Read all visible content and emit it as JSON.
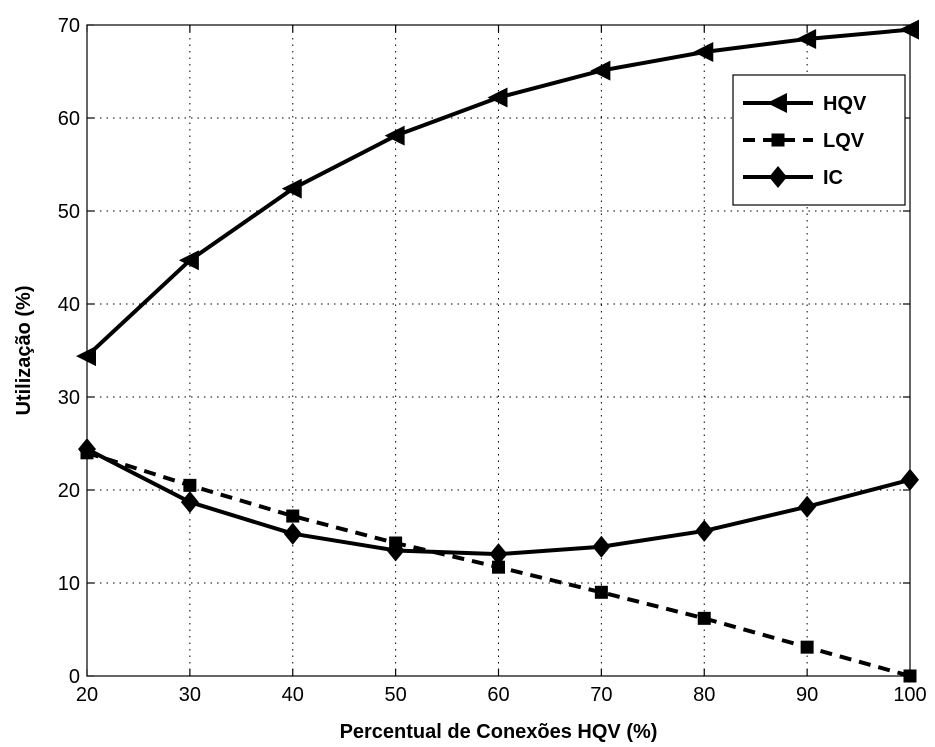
{
  "chart_data": {
    "type": "line",
    "title": "",
    "xlabel": "Percentual de Conexões HQV (%)",
    "ylabel": "Utilização (%)",
    "xlim": [
      20,
      100
    ],
    "ylim": [
      0,
      70
    ],
    "xticks": [
      20,
      30,
      40,
      50,
      60,
      70,
      80,
      90,
      100
    ],
    "yticks": [
      0,
      10,
      20,
      30,
      40,
      50,
      60,
      70
    ],
    "grid": true,
    "grid_style": "dotted",
    "legend_position": "top-right",
    "x": [
      20,
      30,
      40,
      50,
      60,
      70,
      80,
      90,
      100
    ],
    "series": [
      {
        "name": "HQV",
        "values": [
          34.4,
          44.7,
          52.4,
          58.1,
          62.2,
          65.1,
          67.1,
          68.5,
          69.5
        ],
        "line_style": "solid",
        "marker": "left-triangle",
        "color": "#000000"
      },
      {
        "name": "LQV",
        "values": [
          24.0,
          20.5,
          17.2,
          14.3,
          11.7,
          9.0,
          6.2,
          3.1,
          0.0
        ],
        "line_style": "dashed",
        "marker": "square",
        "color": "#000000"
      },
      {
        "name": "IC",
        "values": [
          24.4,
          18.7,
          15.3,
          13.5,
          13.1,
          13.9,
          15.6,
          18.2,
          21.1
        ],
        "line_style": "solid",
        "marker": "diamond",
        "color": "#000000"
      }
    ]
  }
}
